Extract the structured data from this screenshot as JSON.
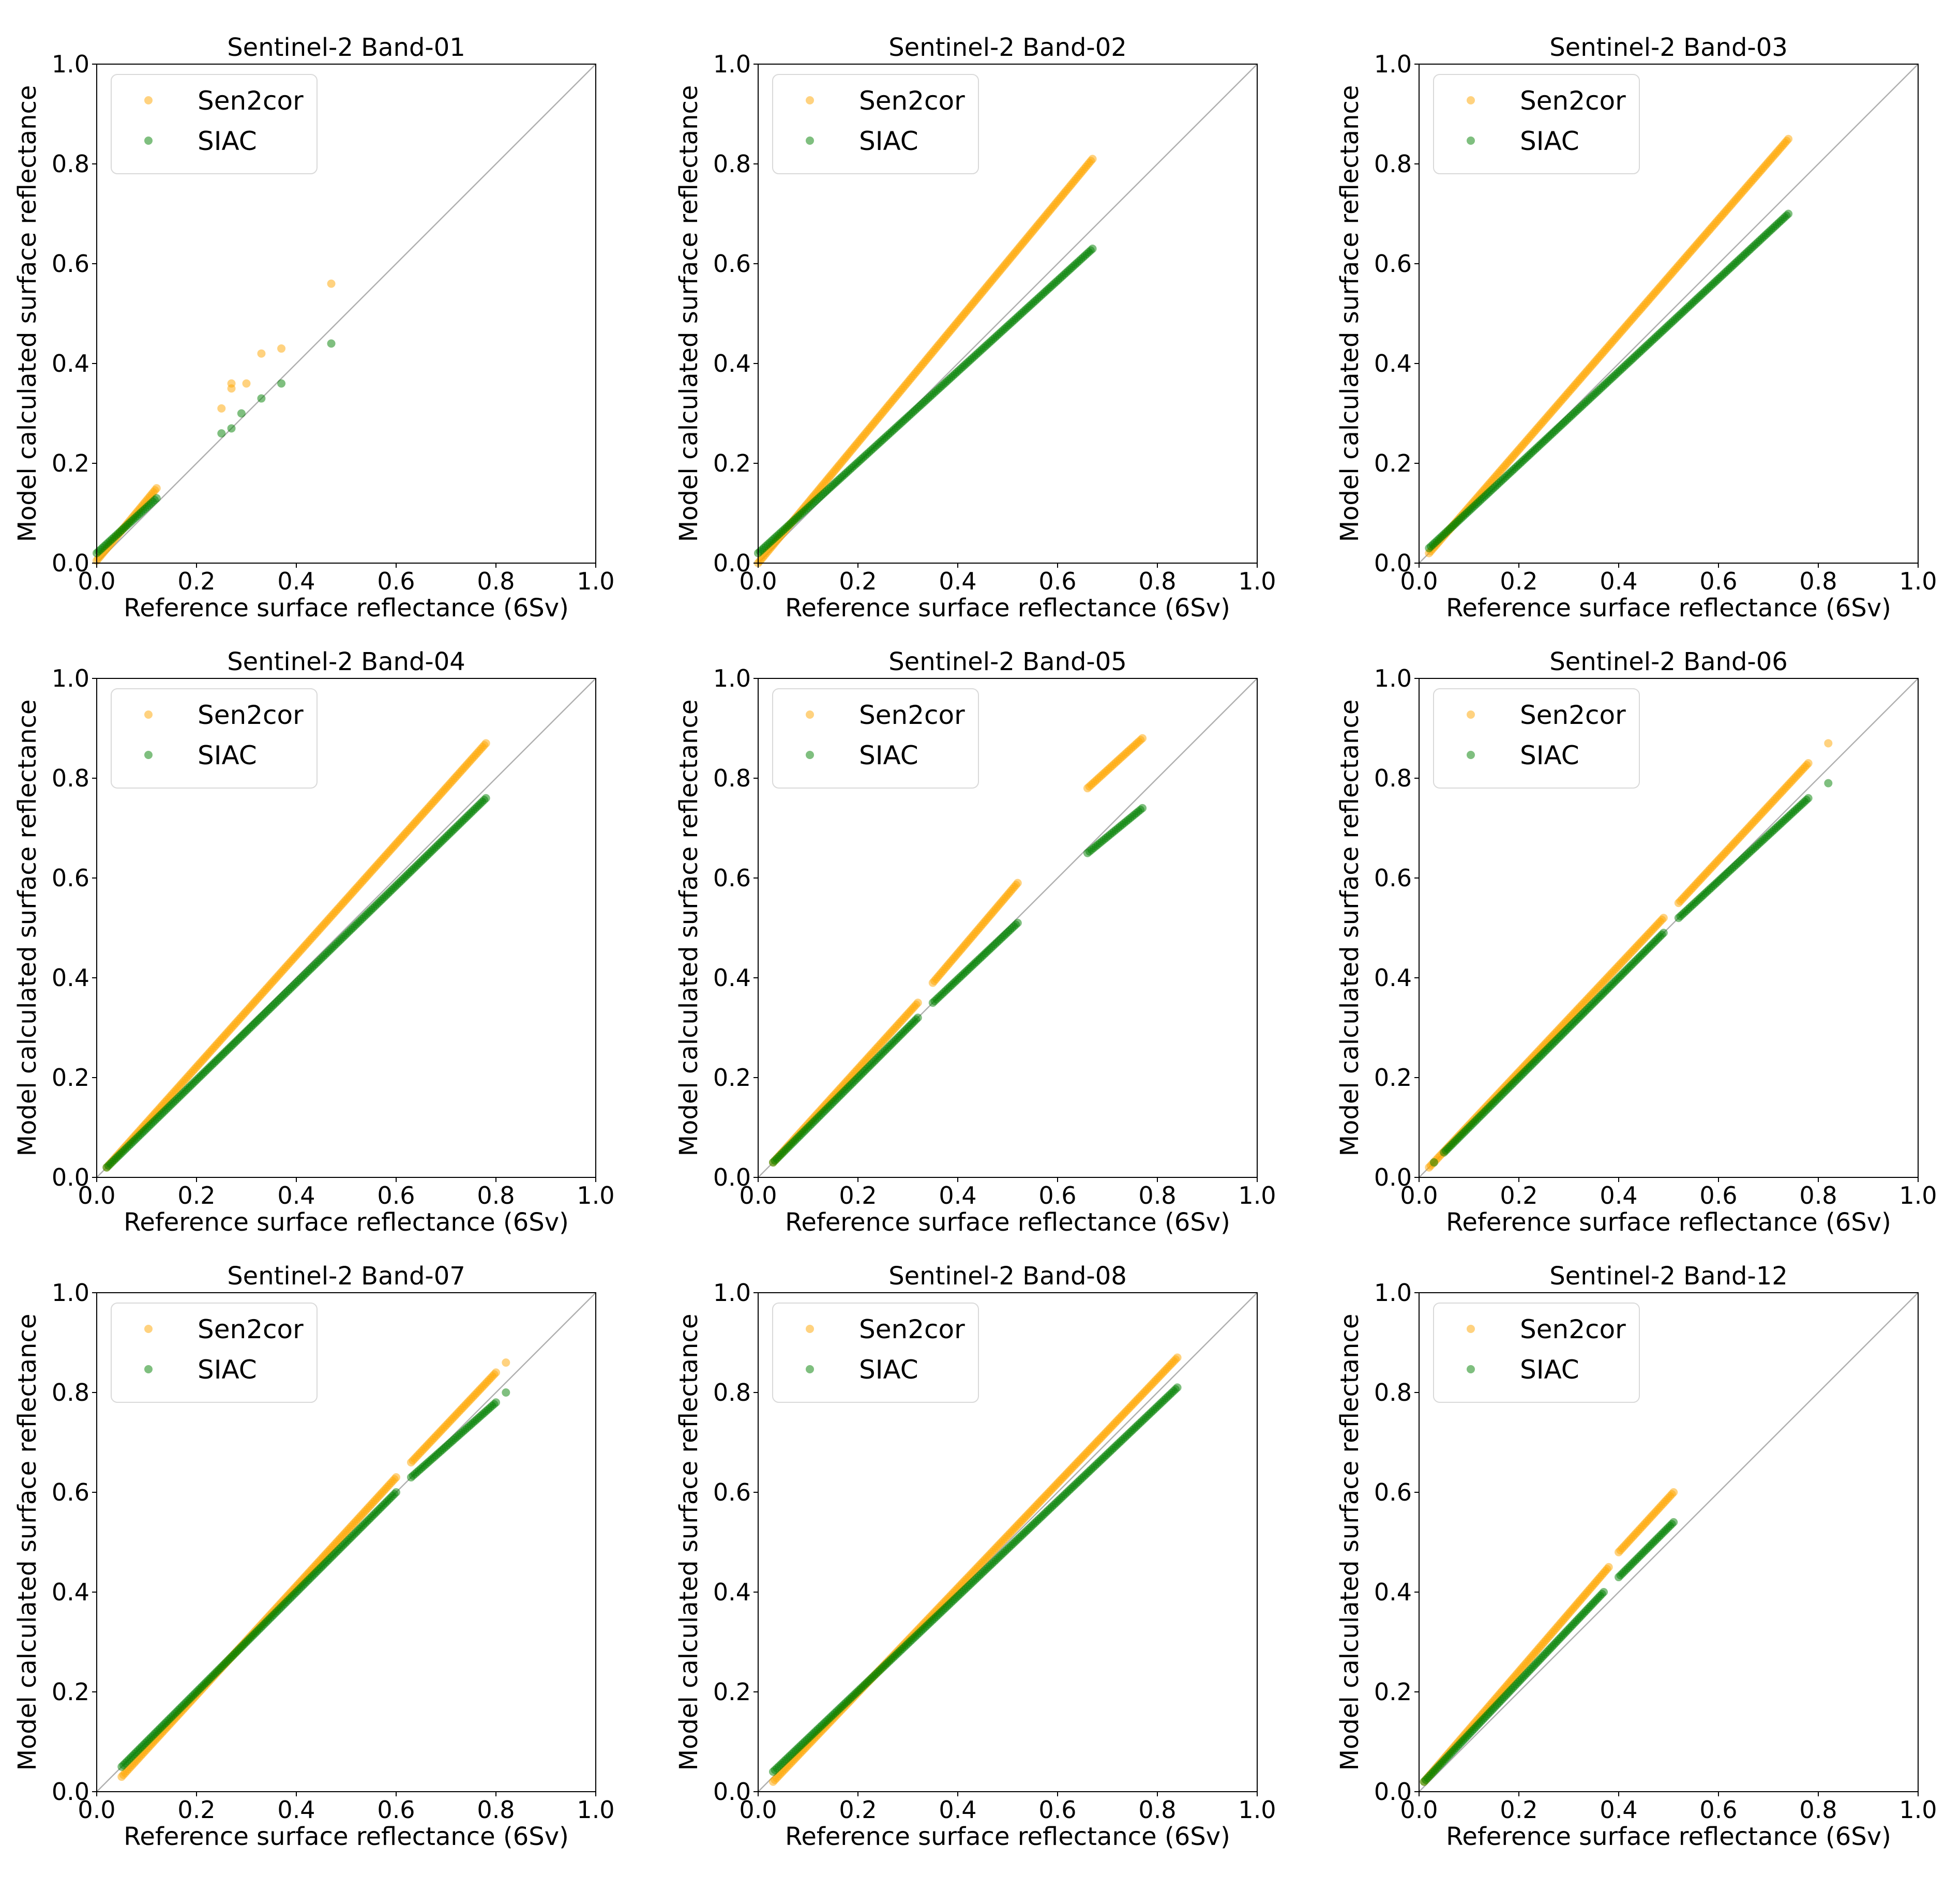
{
  "colors": {
    "sen2cor": "#FFA500",
    "siac": "#008000",
    "identity_line": "#b0b0b0",
    "axes": "#000000",
    "legend_border": "#d9d9d9"
  },
  "axis_ticks": [
    "0.0",
    "0.2",
    "0.4",
    "0.6",
    "0.8",
    "1.0"
  ],
  "chart_data": [
    {
      "type": "scatter",
      "title": "Sentinel-2 Band-01",
      "xlabel": "Reference surface reflectance (6Sv)",
      "ylabel": "Model calculated surface reflectance",
      "xlim": [
        0,
        1
      ],
      "ylim": [
        0,
        1
      ],
      "legend": "top-left",
      "grid": false,
      "series": [
        {
          "name": "Sen2cor",
          "color": "#FFA500",
          "segments": [
            [
              0.0,
              0.005,
              0.12,
              0.15
            ]
          ],
          "points": [
            [
              0.27,
              0.36
            ],
            [
              0.27,
              0.35
            ],
            [
              0.25,
              0.31
            ],
            [
              0.33,
              0.42
            ],
            [
              0.37,
              0.43
            ],
            [
              0.47,
              0.56
            ],
            [
              0.3,
              0.36
            ]
          ]
        },
        {
          "name": "SIAC",
          "color": "#008000",
          "segments": [
            [
              0.0,
              0.02,
              0.12,
              0.13
            ]
          ],
          "points": [
            [
              0.25,
              0.26
            ],
            [
              0.27,
              0.27
            ],
            [
              0.29,
              0.3
            ],
            [
              0.33,
              0.33
            ],
            [
              0.37,
              0.36
            ],
            [
              0.47,
              0.44
            ]
          ]
        }
      ]
    },
    {
      "type": "scatter",
      "title": "Sentinel-2 Band-02",
      "xlabel": "Reference surface reflectance (6Sv)",
      "ylabel": "Model calculated surface reflectance",
      "xlim": [
        0,
        1
      ],
      "ylim": [
        0,
        1
      ],
      "legend": "top-left",
      "grid": false,
      "series": [
        {
          "name": "Sen2cor",
          "color": "#FFA500",
          "segments": [
            [
              0.0,
              0.0,
              0.67,
              0.81
            ]
          ],
          "points": []
        },
        {
          "name": "SIAC",
          "color": "#008000",
          "segments": [
            [
              0.0,
              0.02,
              0.67,
              0.63
            ]
          ],
          "points": []
        }
      ]
    },
    {
      "type": "scatter",
      "title": "Sentinel-2 Band-03",
      "xlabel": "Reference surface reflectance (6Sv)",
      "ylabel": "Model calculated surface reflectance",
      "xlim": [
        0,
        1
      ],
      "ylim": [
        0,
        1
      ],
      "legend": "top-left",
      "grid": false,
      "series": [
        {
          "name": "Sen2cor",
          "color": "#FFA500",
          "segments": [
            [
              0.02,
              0.02,
              0.74,
              0.85
            ]
          ],
          "points": []
        },
        {
          "name": "SIAC",
          "color": "#008000",
          "segments": [
            [
              0.02,
              0.03,
              0.74,
              0.7
            ]
          ],
          "points": []
        }
      ]
    },
    {
      "type": "scatter",
      "title": "Sentinel-2 Band-04",
      "xlabel": "Reference surface reflectance (6Sv)",
      "ylabel": "Model calculated surface reflectance",
      "xlim": [
        0,
        1
      ],
      "ylim": [
        0,
        1
      ],
      "legend": "top-left",
      "grid": false,
      "series": [
        {
          "name": "Sen2cor",
          "color": "#FFA500",
          "segments": [
            [
              0.02,
              0.02,
              0.78,
              0.87
            ]
          ],
          "points": []
        },
        {
          "name": "SIAC",
          "color": "#008000",
          "segments": [
            [
              0.02,
              0.02,
              0.78,
              0.76
            ]
          ],
          "points": []
        }
      ]
    },
    {
      "type": "scatter",
      "title": "Sentinel-2 Band-05",
      "xlabel": "Reference surface reflectance (6Sv)",
      "ylabel": "Model calculated surface reflectance",
      "xlim": [
        0,
        1
      ],
      "ylim": [
        0,
        1
      ],
      "legend": "top-left",
      "grid": false,
      "series": [
        {
          "name": "Sen2cor",
          "color": "#FFA500",
          "segments": [
            [
              0.03,
              0.03,
              0.32,
              0.35
            ],
            [
              0.35,
              0.39,
              0.52,
              0.59
            ],
            [
              0.66,
              0.78,
              0.77,
              0.88
            ]
          ],
          "points": []
        },
        {
          "name": "SIAC",
          "color": "#008000",
          "segments": [
            [
              0.03,
              0.03,
              0.32,
              0.32
            ],
            [
              0.35,
              0.35,
              0.52,
              0.51
            ],
            [
              0.66,
              0.65,
              0.77,
              0.74
            ]
          ],
          "points": []
        }
      ]
    },
    {
      "type": "scatter",
      "title": "Sentinel-2 Band-06",
      "xlabel": "Reference surface reflectance (6Sv)",
      "ylabel": "Model calculated surface reflectance",
      "xlim": [
        0,
        1
      ],
      "ylim": [
        0,
        1
      ],
      "legend": "top-left",
      "grid": false,
      "series": [
        {
          "name": "Sen2cor",
          "color": "#FFA500",
          "segments": [
            [
              0.02,
              0.02,
              0.49,
              0.52
            ],
            [
              0.52,
              0.55,
              0.78,
              0.83
            ]
          ],
          "points": [
            [
              0.82,
              0.87
            ]
          ]
        },
        {
          "name": "SIAC",
          "color": "#008000",
          "segments": [
            [
              0.05,
              0.05,
              0.49,
              0.49
            ],
            [
              0.52,
              0.52,
              0.78,
              0.76
            ]
          ],
          "points": [
            [
              0.03,
              0.03
            ],
            [
              0.82,
              0.79
            ]
          ]
        }
      ]
    },
    {
      "type": "scatter",
      "title": "Sentinel-2 Band-07",
      "xlabel": "Reference surface reflectance (6Sv)",
      "ylabel": "Model calculated surface reflectance",
      "xlim": [
        0,
        1
      ],
      "ylim": [
        0,
        1
      ],
      "legend": "top-left",
      "grid": false,
      "series": [
        {
          "name": "Sen2cor",
          "color": "#FFA500",
          "segments": [
            [
              0.05,
              0.03,
              0.6,
              0.63
            ],
            [
              0.63,
              0.66,
              0.8,
              0.84
            ]
          ],
          "points": [
            [
              0.82,
              0.86
            ]
          ]
        },
        {
          "name": "SIAC",
          "color": "#008000",
          "segments": [
            [
              0.05,
              0.05,
              0.6,
              0.6
            ],
            [
              0.63,
              0.63,
              0.8,
              0.78
            ]
          ],
          "points": [
            [
              0.82,
              0.8
            ]
          ]
        }
      ]
    },
    {
      "type": "scatter",
      "title": "Sentinel-2 Band-08",
      "xlabel": "Reference surface reflectance (6Sv)",
      "ylabel": "Model calculated surface reflectance",
      "xlim": [
        0,
        1
      ],
      "ylim": [
        0,
        1
      ],
      "legend": "top-left",
      "grid": false,
      "series": [
        {
          "name": "Sen2cor",
          "color": "#FFA500",
          "segments": [
            [
              0.03,
              0.02,
              0.84,
              0.87
            ]
          ],
          "points": []
        },
        {
          "name": "SIAC",
          "color": "#008000",
          "segments": [
            [
              0.03,
              0.04,
              0.84,
              0.81
            ]
          ],
          "points": []
        }
      ]
    },
    {
      "type": "scatter",
      "title": "Sentinel-2 Band-12",
      "xlabel": "Reference surface reflectance (6Sv)",
      "ylabel": "Model calculated surface reflectance",
      "xlim": [
        0,
        1
      ],
      "ylim": [
        0,
        1
      ],
      "legend": "top-left",
      "grid": false,
      "series": [
        {
          "name": "Sen2cor",
          "color": "#FFA500",
          "segments": [
            [
              0.01,
              0.02,
              0.38,
              0.45
            ],
            [
              0.4,
              0.48,
              0.51,
              0.6
            ]
          ],
          "points": []
        },
        {
          "name": "SIAC",
          "color": "#008000",
          "segments": [
            [
              0.01,
              0.02,
              0.37,
              0.4
            ],
            [
              0.4,
              0.43,
              0.51,
              0.54
            ]
          ],
          "points": []
        }
      ]
    }
  ]
}
